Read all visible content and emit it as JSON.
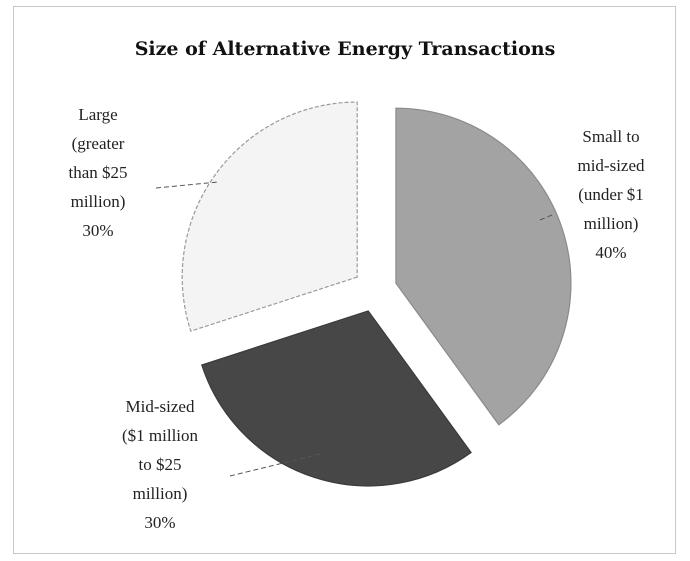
{
  "chart_data": {
    "type": "pie",
    "title": "Size of Alternative Energy Transactions",
    "slices": [
      {
        "name": "Small to mid-sized (under $1 million)",
        "label_lines": [
          "Small to",
          "mid-sized",
          "(under $1",
          "million)",
          "40%"
        ],
        "value": 40,
        "color": "#a3a3a3"
      },
      {
        "name": "Mid-sized ($1 million to $25 million)",
        "label_lines": [
          "Mid-sized",
          "($1 million",
          "to $25",
          "million)",
          "30%"
        ],
        "value": 30,
        "color": "#474747"
      },
      {
        "name": "Large (greater than $25 million)",
        "label_lines": [
          "Large",
          "(greater",
          "than $25",
          "million)",
          "30%"
        ],
        "value": 30,
        "color": "#f4f4f4"
      }
    ],
    "legend": "none",
    "exploded": true
  }
}
